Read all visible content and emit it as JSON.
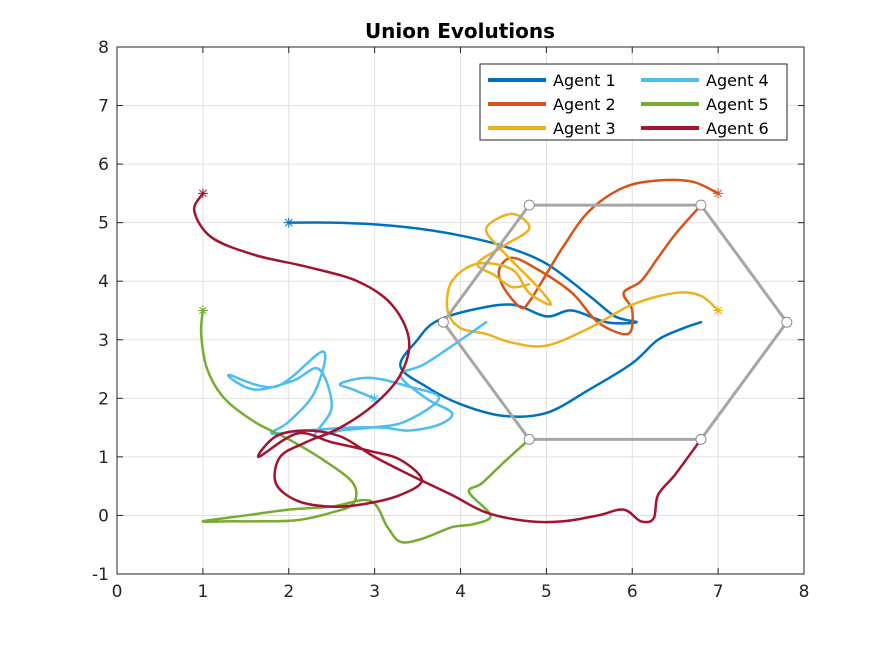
{
  "chart_data": {
    "type": "line",
    "title": "Union Evolutions",
    "xlabel": "",
    "ylabel": "",
    "xlim": [
      0,
      8
    ],
    "ylim": [
      -1,
      8
    ],
    "xticks": [
      "0",
      "1",
      "2",
      "3",
      "4",
      "5",
      "6",
      "7",
      "8"
    ],
    "yticks": [
      "-1",
      "0",
      "1",
      "2",
      "3",
      "4",
      "5",
      "6",
      "7",
      "8"
    ],
    "grid": true,
    "legend_placement": "top-right",
    "legend_columns": 2,
    "series": [
      {
        "name": "Agent 1",
        "color": "#0072BD",
        "start": [
          2.0,
          5.0
        ],
        "x": [
          2.0,
          2.5,
          3.0,
          3.5,
          4.0,
          4.5,
          5.0,
          5.5,
          5.8,
          6.05,
          5.7,
          5.3,
          5.0,
          4.6,
          4.1,
          3.7,
          3.5,
          3.3,
          3.6,
          4.0,
          4.5,
          5.0,
          5.5,
          6.0,
          6.3,
          6.6,
          6.8
        ],
        "y": [
          5.0,
          5.0,
          4.97,
          4.9,
          4.78,
          4.6,
          4.3,
          3.75,
          3.4,
          3.3,
          3.3,
          3.5,
          3.4,
          3.6,
          3.5,
          3.3,
          3.0,
          2.55,
          2.2,
          1.9,
          1.7,
          1.75,
          2.15,
          2.6,
          3.0,
          3.2,
          3.3
        ]
      },
      {
        "name": "Agent 2",
        "color": "#D95319",
        "start": [
          7.0,
          5.5
        ],
        "x": [
          7.0,
          6.7,
          6.3,
          5.9,
          5.5,
          5.2,
          4.95,
          4.8,
          4.7,
          4.5,
          4.45,
          4.6,
          4.9,
          5.3,
          5.6,
          5.95,
          6.0,
          5.9,
          6.1,
          6.3,
          6.5,
          6.8
        ],
        "y": [
          5.5,
          5.7,
          5.72,
          5.6,
          5.2,
          4.6,
          4.0,
          3.65,
          3.55,
          3.9,
          4.2,
          4.4,
          4.2,
          3.8,
          3.3,
          3.1,
          3.5,
          3.8,
          4.0,
          4.4,
          4.8,
          5.3
        ]
      },
      {
        "name": "Agent 3",
        "color": "#EDB120",
        "start": [
          7.0,
          3.5
        ],
        "x": [
          7.0,
          6.8,
          6.5,
          6.0,
          5.5,
          5.0,
          4.6,
          4.3,
          4.0,
          3.85,
          3.9,
          4.2,
          4.6,
          4.8,
          5.05,
          4.9,
          4.5,
          4.3,
          4.6,
          4.8,
          4.5,
          4.2,
          4.4,
          4.6,
          4.8
        ],
        "y": [
          3.5,
          3.75,
          3.8,
          3.6,
          3.2,
          2.9,
          2.95,
          3.1,
          3.2,
          3.5,
          4.0,
          4.3,
          4.2,
          3.8,
          3.6,
          3.9,
          4.5,
          4.9,
          5.15,
          4.9,
          4.6,
          4.3,
          4.1,
          3.9,
          3.95
        ]
      },
      {
        "name": "Agent 4",
        "color": "#4DBEEE",
        "start": [
          3.0,
          2.0
        ],
        "x": [
          3.0,
          2.75,
          2.6,
          2.95,
          3.4,
          3.75,
          3.35,
          2.95,
          2.6,
          2.3,
          2.5,
          2.35,
          2.05,
          1.6,
          1.3,
          1.85,
          2.4,
          2.3,
          2.0,
          1.8,
          2.2,
          2.7,
          3.1,
          3.4,
          3.75,
          3.9,
          3.6,
          3.3,
          3.6,
          4.3
        ],
        "y": [
          2.0,
          2.15,
          2.25,
          2.35,
          2.2,
          2.0,
          1.6,
          1.5,
          1.45,
          1.35,
          1.85,
          2.5,
          2.3,
          2.15,
          2.4,
          2.2,
          2.8,
          2.1,
          1.6,
          1.4,
          1.45,
          1.5,
          1.5,
          1.45,
          1.55,
          1.75,
          2.0,
          2.4,
          2.6,
          3.3
        ]
      },
      {
        "name": "Agent 5",
        "color": "#77AC30",
        "start": [
          1.0,
          3.5
        ],
        "x": [
          1.0,
          0.98,
          1.05,
          1.25,
          1.6,
          2.0,
          2.4,
          2.75,
          2.75,
          2.5,
          2.1,
          1.7,
          1.35,
          1.0,
          1.5,
          2.0,
          2.5,
          2.95,
          3.15,
          3.3,
          3.55,
          3.9,
          4.15,
          4.35,
          4.1,
          4.25,
          4.5,
          4.8
        ],
        "y": [
          3.5,
          3.1,
          2.5,
          2.0,
          1.6,
          1.3,
          0.95,
          0.55,
          0.2,
          0.05,
          -0.08,
          -0.1,
          -0.1,
          -0.1,
          0.0,
          0.1,
          0.15,
          0.25,
          -0.2,
          -0.45,
          -0.4,
          -0.2,
          -0.15,
          0.0,
          0.4,
          0.55,
          0.9,
          1.3
        ]
      },
      {
        "name": "Agent 6",
        "color": "#A2142F",
        "start": [
          1.0,
          5.5
        ],
        "x": [
          1.0,
          0.9,
          1.1,
          1.6,
          2.2,
          2.8,
          3.2,
          3.4,
          3.3,
          3.0,
          2.6,
          2.2,
          1.9,
          1.85,
          2.1,
          2.5,
          2.9,
          3.3,
          3.55,
          3.3,
          2.95,
          2.5,
          2.1,
          1.65,
          1.85,
          2.2,
          2.6,
          3.0,
          3.4,
          3.9,
          4.3,
          4.8,
          5.2,
          5.6,
          5.9,
          6.1,
          6.25,
          6.3,
          6.5,
          6.8
        ],
        "y": [
          5.5,
          5.2,
          4.75,
          4.45,
          4.25,
          4.0,
          3.6,
          3.0,
          2.4,
          1.9,
          1.5,
          1.25,
          1.0,
          0.55,
          0.25,
          0.15,
          0.2,
          0.35,
          0.6,
          0.95,
          1.1,
          1.25,
          1.4,
          1.0,
          1.35,
          1.45,
          1.35,
          1.0,
          0.7,
          0.35,
          0.05,
          -0.1,
          -0.1,
          0.0,
          0.1,
          -0.1,
          -0.05,
          0.35,
          0.7,
          1.3
        ]
      }
    ],
    "formation": {
      "color": "#A6A6A6",
      "x": [
        4.8,
        6.8,
        7.8,
        6.8,
        4.8,
        3.8,
        4.8
      ],
      "y": [
        5.3,
        5.3,
        3.3,
        1.3,
        1.3,
        3.3,
        5.3
      ]
    }
  }
}
